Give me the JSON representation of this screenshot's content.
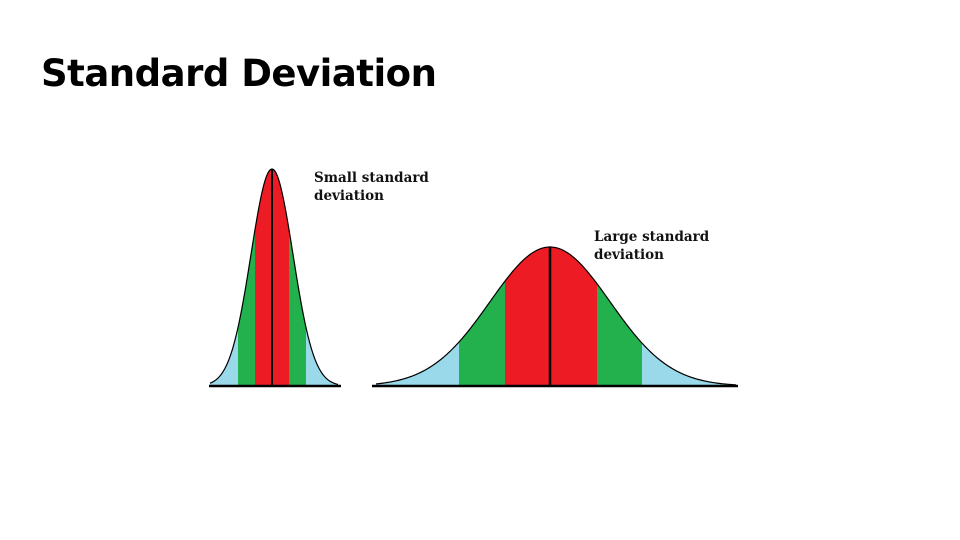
{
  "slide": {
    "title": "Standard Deviation"
  },
  "curves": [
    {
      "id": "small",
      "label_line1": "Small standard",
      "label_line2": "deviation"
    },
    {
      "id": "large",
      "label_line1": "Large standard",
      "label_line2": "deviation"
    }
  ],
  "colors": {
    "center_band": "#ed1c24",
    "second_band": "#22b14c",
    "third_band": "#99d9ea",
    "outline": "#000000"
  }
}
